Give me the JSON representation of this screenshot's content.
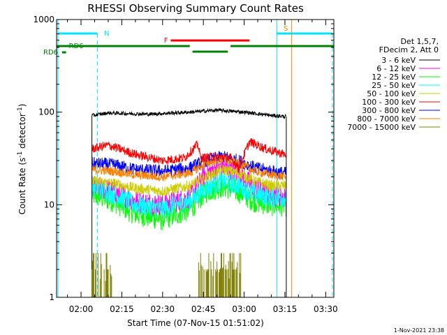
{
  "chart_data": {
    "type": "line",
    "title": "RHESSI Observing Summary Count Rates",
    "xlabel": "Start Time (07-Nov-15 01:51:02)",
    "ylabel_main": "Count Rate (s",
    "ylabel_sup": "-1",
    "ylabel_rest": " detector",
    "ylabel_sup2": "-1",
    "ylabel_end": ")",
    "yscale": "log",
    "ylim": [
      1,
      1000
    ],
    "y_ticks": [
      {
        "value": 1,
        "label": "1"
      },
      {
        "value": 10,
        "label": "10"
      },
      {
        "value": 100,
        "label": "100"
      },
      {
        "value": 1000,
        "label": "1000"
      }
    ],
    "xlim_minutes": [
      -9,
      93
    ],
    "x_ticks": [
      {
        "minute": 0,
        "label": "02:00"
      },
      {
        "minute": 15,
        "label": "02:15"
      },
      {
        "minute": 30,
        "label": "02:30"
      },
      {
        "minute": 45,
        "label": "02:45"
      },
      {
        "minute": 60,
        "label": "03:00"
      },
      {
        "minute": 75,
        "label": "03:15"
      },
      {
        "minute": 90,
        "label": "03:30"
      }
    ],
    "legend_header": [
      "Det 1,5,7,",
      "FDecim 2, Att 0"
    ],
    "series": [
      {
        "name": "3 - 6 keV",
        "color": "#000000",
        "profile": [
          [
            4,
            92
          ],
          [
            10,
            98
          ],
          [
            25,
            95
          ],
          [
            40,
            100
          ],
          [
            50,
            105
          ],
          [
            60,
            100
          ],
          [
            70,
            92
          ],
          [
            75,
            90
          ]
        ]
      },
      {
        "name": "6 - 12 keV",
        "color": "#ff00ff",
        "profile": [
          [
            4,
            16
          ],
          [
            12,
            14
          ],
          [
            20,
            11
          ],
          [
            30,
            10
          ],
          [
            40,
            12
          ],
          [
            46,
            22
          ],
          [
            52,
            26
          ],
          [
            58,
            22
          ],
          [
            64,
            15
          ],
          [
            70,
            13
          ],
          [
            75,
            12
          ]
        ]
      },
      {
        "name": "12 - 25 keV",
        "color": "#00ff00",
        "profile": [
          [
            4,
            13
          ],
          [
            12,
            11
          ],
          [
            20,
            8
          ],
          [
            30,
            7
          ],
          [
            40,
            9
          ],
          [
            46,
            14
          ],
          [
            52,
            16
          ],
          [
            58,
            14
          ],
          [
            64,
            11
          ],
          [
            70,
            10
          ],
          [
            75,
            10
          ]
        ]
      },
      {
        "name": "25 - 50 keV",
        "color": "#00ffff",
        "profile": [
          [
            4,
            16
          ],
          [
            12,
            13
          ],
          [
            20,
            10
          ],
          [
            30,
            9
          ],
          [
            40,
            11
          ],
          [
            46,
            15
          ],
          [
            52,
            18
          ],
          [
            58,
            16
          ],
          [
            64,
            13
          ],
          [
            70,
            12
          ],
          [
            75,
            12
          ]
        ]
      },
      {
        "name": "50 - 100 keV",
        "color": "#cccc00",
        "profile": [
          [
            4,
            18
          ],
          [
            12,
            17
          ],
          [
            20,
            15
          ],
          [
            30,
            14
          ],
          [
            40,
            16
          ],
          [
            46,
            20
          ],
          [
            52,
            24
          ],
          [
            58,
            22
          ],
          [
            64,
            18
          ],
          [
            70,
            16
          ],
          [
            75,
            16
          ]
        ]
      },
      {
        "name": "100 - 300 keV",
        "color": "#ff0000",
        "profile": [
          [
            4,
            40
          ],
          [
            10,
            44
          ],
          [
            20,
            35
          ],
          [
            30,
            30
          ],
          [
            38,
            32
          ],
          [
            43,
            45
          ],
          [
            44,
            32
          ],
          [
            50,
            33
          ],
          [
            55,
            32
          ],
          [
            58,
            25
          ],
          [
            62,
            48
          ],
          [
            68,
            40
          ],
          [
            75,
            35
          ]
        ]
      },
      {
        "name": "300 - 800 keV",
        "color": "#0000ff",
        "profile": [
          [
            4,
            28
          ],
          [
            12,
            27
          ],
          [
            20,
            24
          ],
          [
            30,
            23
          ],
          [
            40,
            25
          ],
          [
            46,
            30
          ],
          [
            52,
            33
          ],
          [
            58,
            30
          ],
          [
            64,
            25
          ],
          [
            70,
            23
          ],
          [
            75,
            22
          ]
        ]
      },
      {
        "name": "800 - 7000 keV",
        "color": "#ff8000",
        "profile": [
          [
            4,
            24
          ],
          [
            12,
            23
          ],
          [
            20,
            21
          ],
          [
            30,
            20
          ],
          [
            40,
            22
          ],
          [
            46,
            28
          ],
          [
            52,
            31
          ],
          [
            58,
            28
          ],
          [
            64,
            23
          ],
          [
            70,
            21
          ],
          [
            75,
            20
          ]
        ]
      },
      {
        "name": "7000 - 15000 keV",
        "color": "#808000",
        "profile": []
      }
    ],
    "annotations": [
      {
        "label": "N",
        "color": "#00e5ff"
      },
      {
        "label": "F",
        "color": "#ff0000"
      },
      {
        "label": "S",
        "color": "#ff8000"
      },
      {
        "label": "RD6",
        "color": "#008000"
      },
      {
        "label": "RD6",
        "color": "#008000"
      }
    ],
    "grid": false,
    "legend_position": "right"
  },
  "footer": {
    "timestamp": "1-Nov-2021 23:38"
  }
}
